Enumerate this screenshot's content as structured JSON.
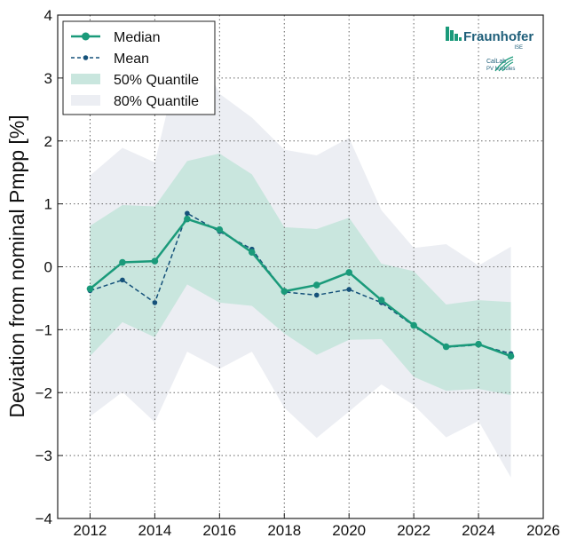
{
  "chart_data": {
    "type": "line",
    "title": "",
    "xlabel": "",
    "ylabel": "Deviation from nominal Pmpp [%]",
    "xlim": [
      2011,
      2026
    ],
    "ylim": [
      -4,
      4
    ],
    "grid": true,
    "legend_position": "top-left",
    "x_ticks": [
      "2012",
      "2014",
      "2016",
      "2018",
      "2020",
      "2022",
      "2024",
      "2026"
    ],
    "y_ticks": [
      "4",
      "3",
      "2",
      "1",
      "0",
      "−1",
      "−2",
      "−3",
      "−4"
    ],
    "x": [
      2012,
      2013,
      2014,
      2015,
      2016,
      2017,
      2018,
      2019,
      2020,
      2021,
      2022,
      2023,
      2024,
      2025
    ],
    "series": [
      {
        "name": "Median",
        "style": "solid-marker",
        "values": [
          -0.35,
          0.07,
          0.09,
          0.76,
          0.59,
          0.23,
          -0.39,
          -0.29,
          -0.09,
          -0.53,
          -0.93,
          -1.27,
          -1.23,
          -1.42
        ],
        "color": "#1a9a7a"
      },
      {
        "name": "Mean",
        "style": "dashed-marker",
        "values": [
          -0.38,
          -0.21,
          -0.57,
          0.85,
          0.56,
          0.28,
          -0.4,
          -0.45,
          -0.36,
          -0.57,
          -0.94,
          -1.28,
          -1.24,
          -1.38
        ],
        "color": "#15517a"
      },
      {
        "name": "50% Quantile",
        "style": "band",
        "upper": [
          0.65,
          0.98,
          0.96,
          1.68,
          1.8,
          1.47,
          0.63,
          0.6,
          0.78,
          0.05,
          -0.07,
          -0.6,
          -0.53,
          -0.56
        ],
        "lower": [
          -1.42,
          -0.88,
          -1.12,
          -0.28,
          -0.57,
          -0.62,
          -1.06,
          -1.4,
          -1.16,
          -1.15,
          -1.75,
          -1.97,
          -1.94,
          -2.04
        ],
        "color": "#c9e6de"
      },
      {
        "name": "80% Quantile",
        "style": "band",
        "upper": [
          1.45,
          1.89,
          1.66,
          3.8,
          2.75,
          2.37,
          1.86,
          1.77,
          2.05,
          0.9,
          0.3,
          0.36,
          0.02,
          0.32
        ],
        "lower": [
          -2.38,
          -1.99,
          -2.47,
          -1.35,
          -1.62,
          -1.35,
          -2.24,
          -2.72,
          -2.3,
          -1.87,
          -2.2,
          -2.71,
          -2.45,
          -3.35
        ],
        "color": "#eceef3"
      }
    ]
  },
  "logo": {
    "name": "Fraunhofer",
    "sub": "ISE",
    "lab": "CalLab",
    "lab_sub": "PV Modules"
  },
  "colors": {
    "median": "#1a9a7a",
    "mean": "#15517a",
    "q50": "#c9e6de",
    "q80": "#eceef3",
    "grid": "#666666",
    "axis": "#222222"
  }
}
